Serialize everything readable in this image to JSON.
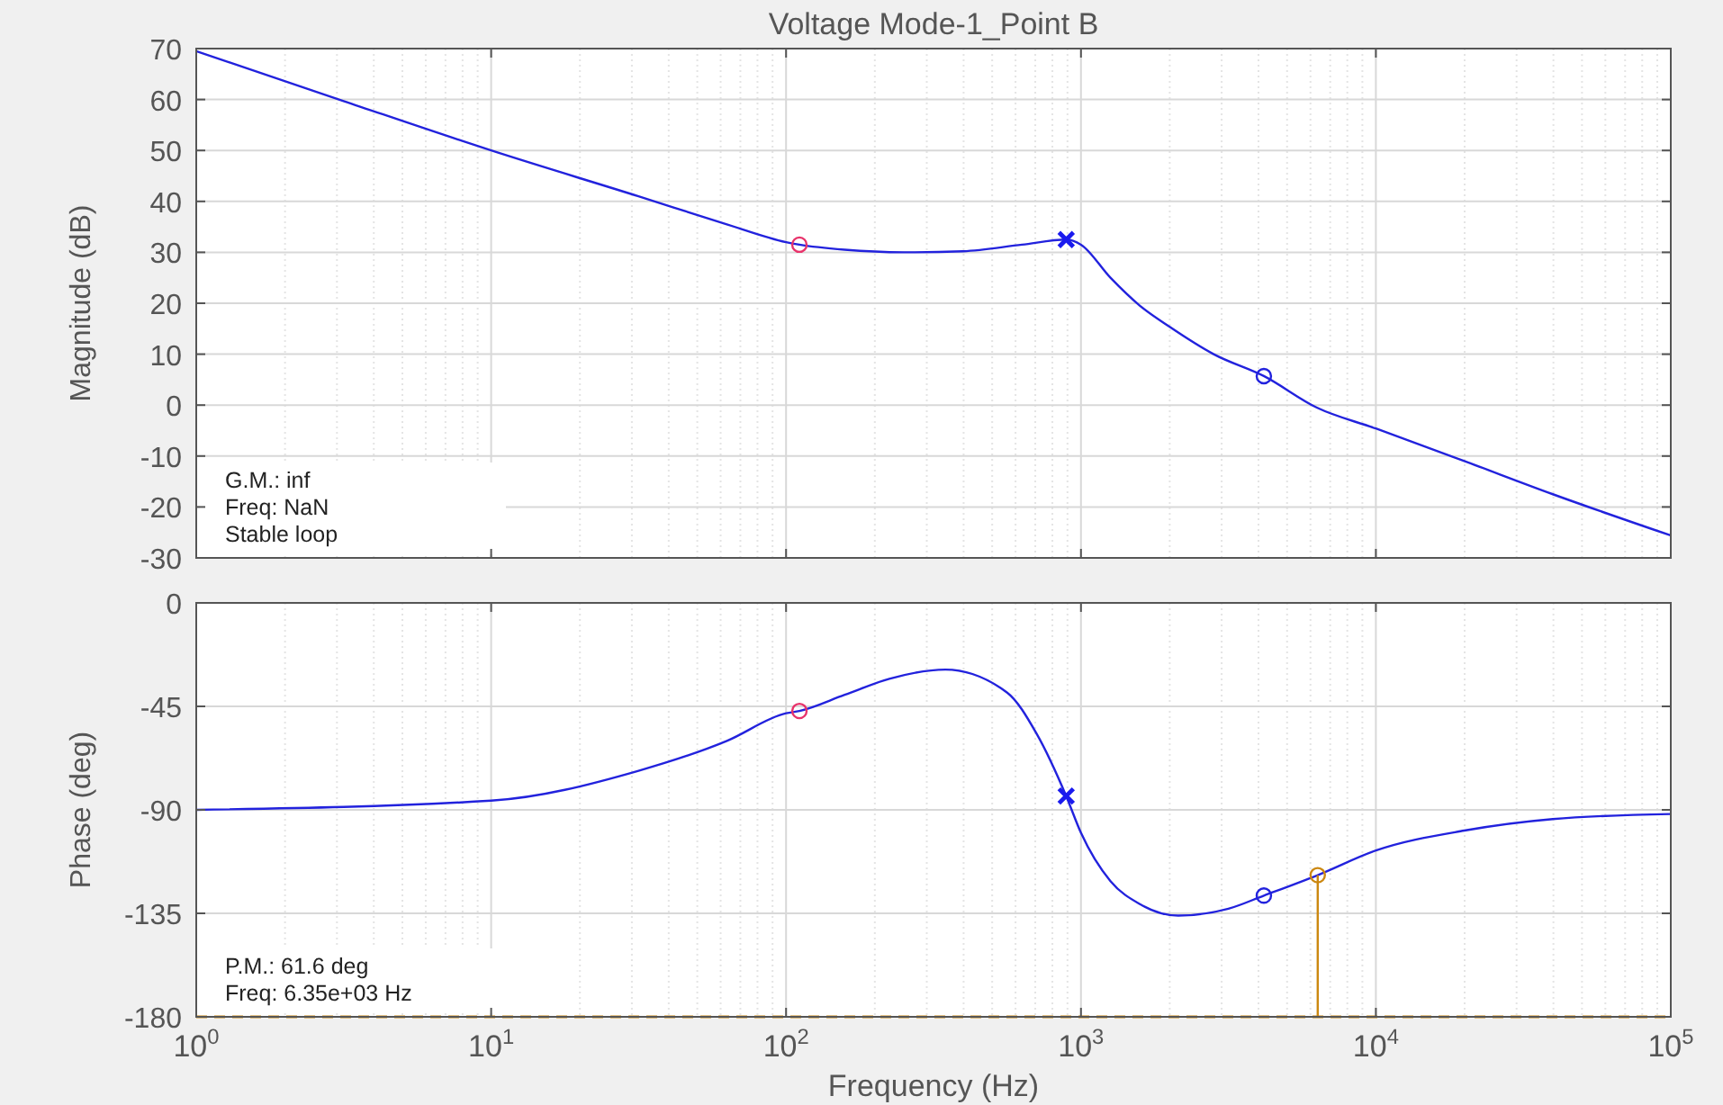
{
  "chart_data": [
    {
      "type": "line",
      "title": "Voltage Mode-1_Point B",
      "ylabel": "Magnitude (dB)",
      "log": "x",
      "grid": true,
      "tick_labels": "y",
      "xlim": [
        1,
        100000
      ],
      "xticks": [
        {
          "value": 1,
          "label": null
        },
        {
          "value": 10,
          "label": null
        },
        {
          "value": 100,
          "label": null
        },
        {
          "value": 1000,
          "label": null
        },
        {
          "value": 10000,
          "label": null
        },
        {
          "value": 100000,
          "label": null
        }
      ],
      "ylim": [
        -30,
        70
      ],
      "yticks": [
        -30,
        -20,
        -10,
        0,
        10,
        20,
        30,
        40,
        50,
        60,
        70
      ],
      "annotations": [
        "G.M.: inf",
        "Freq: NaN",
        "Stable loop"
      ],
      "series": [
        {
          "color": "#2222dd",
          "marker": "none",
          "x": [
            1,
            3.16,
            10,
            31.6,
            63,
            100,
            111,
            158,
            251,
            398,
            631,
            891,
            1000,
            1259,
            1585,
            1995,
            2818,
            4170,
            6310,
            10000,
            19950,
            39810,
            100000
          ],
          "values": [
            69.5,
            59.7,
            50,
            41,
            35.5,
            32,
            31.5,
            30.5,
            30,
            30.2,
            31.5,
            32.5,
            31.5,
            25,
            19.5,
            15.4,
            10,
            5.7,
            -0.5,
            -4.6,
            -11,
            -17.5,
            -25.6
          ]
        },
        {
          "type": "scatter",
          "color": "#e8336b",
          "marker": "circle",
          "x": [
            111
          ],
          "values": [
            31.5
          ]
        },
        {
          "type": "scatter",
          "color": "#1a1aee",
          "marker": "cross",
          "x": [
            891
          ],
          "values": [
            32.5
          ]
        },
        {
          "type": "scatter",
          "color": "#2222dd",
          "marker": "circle",
          "x": [
            4170
          ],
          "values": [
            5.7
          ]
        }
      ]
    },
    {
      "type": "line",
      "xlabel": "Frequency (Hz)",
      "ylabel": "Phase (deg)",
      "log": "x",
      "grid": true,
      "xlim": [
        1,
        100000
      ],
      "xticks": [
        {
          "value": 1,
          "label": "10$^{0}$"
        },
        {
          "value": 10,
          "label": "10$^{1}$"
        },
        {
          "value": 100,
          "label": "10$^{2}$"
        },
        {
          "value": 1000,
          "label": "10$^{3}$"
        },
        {
          "value": 10000,
          "label": "10$^{4}$"
        },
        {
          "value": 100000,
          "label": "10$^{5}$"
        }
      ],
      "ylim": [
        -180,
        0
      ],
      "yticks": [
        -180,
        -135,
        -90,
        -45,
        0
      ],
      "annotations": [
        "P.M.: 61.6 deg",
        "Freq: 6.35e+03 Hz"
      ],
      "ref_lines": [
        {
          "axis": "y",
          "value": -180,
          "color": "#cc8811",
          "line_style": "dashed"
        }
      ],
      "series": [
        {
          "color": "#2222dd",
          "marker": "none",
          "x": [
            1,
            10,
            31.6,
            63,
            100,
            111,
            158,
            224,
            347,
            562,
            708,
            891,
            1000,
            1259,
            1585,
            2138,
            3162,
            4170,
            6350,
            10000,
            19950,
            39810,
            100000
          ],
          "values": [
            -90,
            -86,
            -73,
            -60,
            -48,
            -47,
            -40,
            -33,
            -29,
            -39,
            -57,
            -84,
            -100,
            -121,
            -131,
            -136,
            -133,
            -127.3,
            -118.4,
            -107.7,
            -99,
            -94,
            -91.8
          ]
        },
        {
          "type": "scatter",
          "color": "#e8336b",
          "marker": "circle",
          "x": [
            111
          ],
          "values": [
            -47
          ]
        },
        {
          "type": "scatter",
          "color": "#1a1aee",
          "marker": "cross",
          "x": [
            891
          ],
          "values": [
            -84
          ]
        },
        {
          "type": "scatter",
          "color": "#2222dd",
          "marker": "circle",
          "x": [
            4170
          ],
          "values": [
            -127.3
          ]
        },
        {
          "color": "#cc8811",
          "marker": "none",
          "x": [
            6350,
            6350
          ],
          "values": [
            -180,
            -118.4
          ]
        },
        {
          "type": "scatter",
          "color": "#cc8811",
          "marker": "circle",
          "x": [
            6350
          ],
          "values": [
            -118.4
          ]
        }
      ]
    }
  ]
}
